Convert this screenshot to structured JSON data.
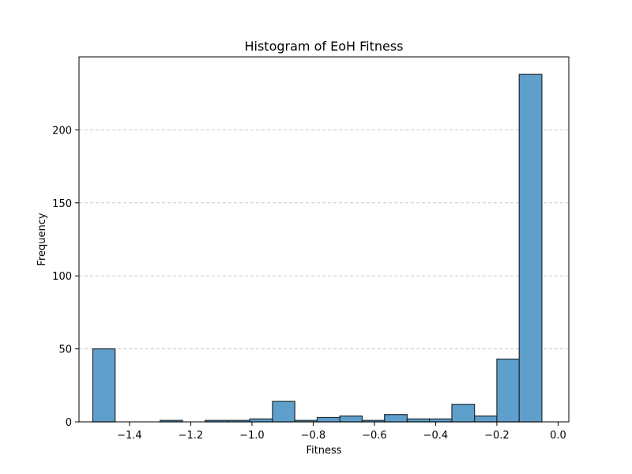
{
  "chart_data": {
    "type": "bar",
    "title": "Histogram of EoH Fitness",
    "xlabel": "Fitness",
    "ylabel": "Frequency",
    "xlim": [
      -1.565,
      0.035
    ],
    "ylim": [
      0,
      250
    ],
    "x_ticks": [
      -1.4,
      -1.2,
      -1.0,
      -0.8,
      -0.6,
      -0.4,
      -0.2,
      0.0
    ],
    "x_tick_labels": [
      "−1.4",
      "−1.2",
      "−1.0",
      "−0.8",
      "−0.6",
      "−0.4",
      "−0.2",
      "0.0"
    ],
    "y_ticks": [
      0,
      50,
      100,
      150,
      200
    ],
    "y_tick_labels": [
      "0",
      "50",
      "100",
      "150",
      "200"
    ],
    "grid": "y-dashed",
    "bar_color": "#5f9fcc",
    "bar_edge_color": "#1f2a33",
    "bins": [
      {
        "x0": -1.52,
        "x1": -1.447,
        "count": 50
      },
      {
        "x0": -1.447,
        "x1": -1.373,
        "count": 0
      },
      {
        "x0": -1.373,
        "x1": -1.3,
        "count": 0
      },
      {
        "x0": -1.3,
        "x1": -1.227,
        "count": 1
      },
      {
        "x0": -1.227,
        "x1": -1.153,
        "count": 0
      },
      {
        "x0": -1.153,
        "x1": -1.08,
        "count": 1
      },
      {
        "x0": -1.08,
        "x1": -1.007,
        "count": 1
      },
      {
        "x0": -1.007,
        "x1": -0.933,
        "count": 2
      },
      {
        "x0": -0.933,
        "x1": -0.86,
        "count": 14
      },
      {
        "x0": -0.86,
        "x1": -0.787,
        "count": 1
      },
      {
        "x0": -0.787,
        "x1": -0.713,
        "count": 3
      },
      {
        "x0": -0.713,
        "x1": -0.64,
        "count": 4
      },
      {
        "x0": -0.64,
        "x1": -0.567,
        "count": 1
      },
      {
        "x0": -0.567,
        "x1": -0.493,
        "count": 5
      },
      {
        "x0": -0.493,
        "x1": -0.42,
        "count": 2
      },
      {
        "x0": -0.42,
        "x1": -0.347,
        "count": 2
      },
      {
        "x0": -0.347,
        "x1": -0.273,
        "count": 12
      },
      {
        "x0": -0.273,
        "x1": -0.2,
        "count": 4
      },
      {
        "x0": -0.2,
        "x1": -0.127,
        "count": 43
      },
      {
        "x0": -0.127,
        "x1": -0.053,
        "count": 238
      }
    ]
  }
}
